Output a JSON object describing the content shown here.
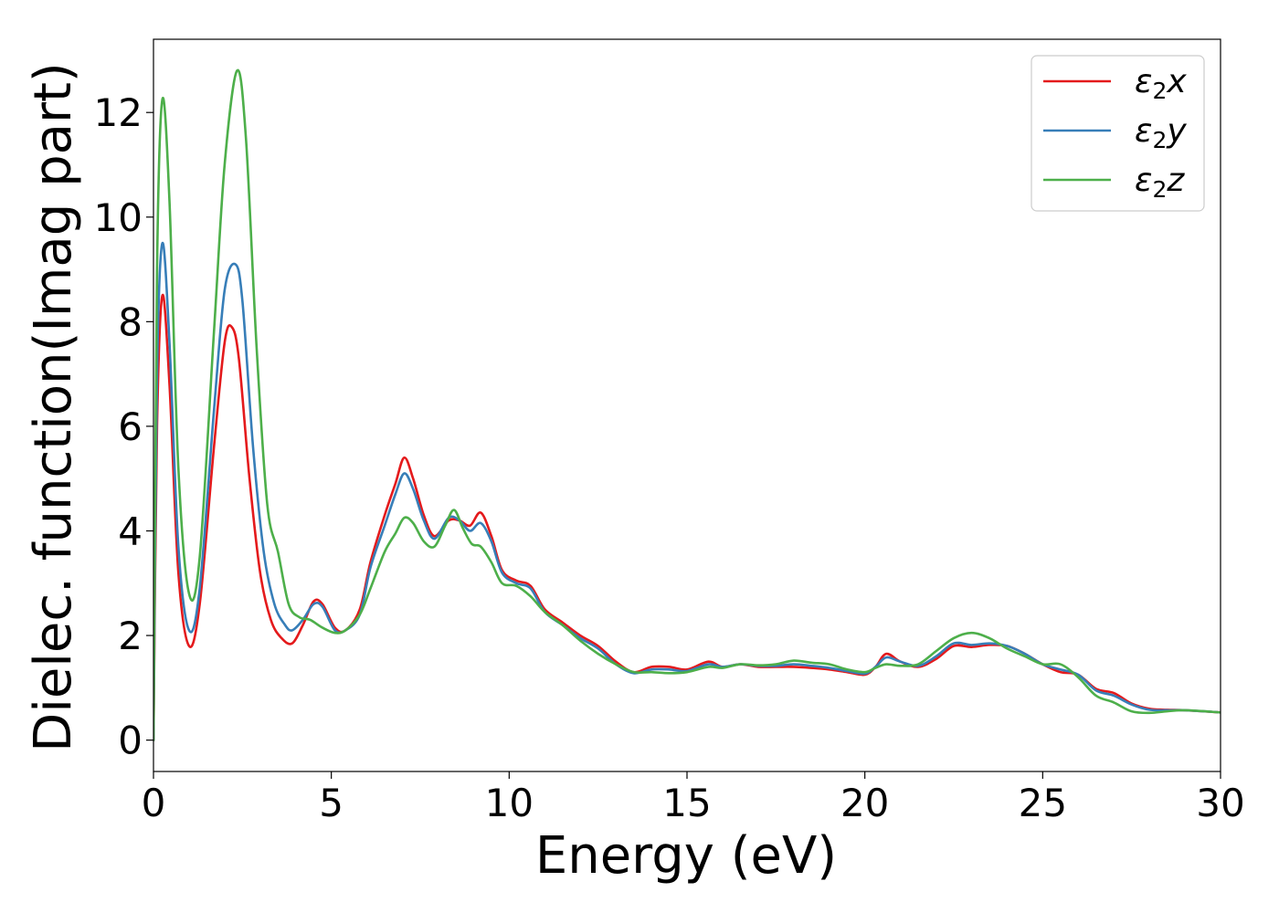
{
  "chart_data": {
    "type": "line",
    "xlabel": "Energy (eV)",
    "ylabel": "Dielec. function(Imag part)",
    "xlim": [
      0,
      30
    ],
    "ylim": [
      -0.6,
      13.4
    ],
    "xticks": [
      0,
      5,
      10,
      15,
      20,
      25,
      30
    ],
    "yticks": [
      0,
      2,
      4,
      6,
      8,
      10,
      12
    ],
    "grid": false,
    "legend_position": "top-right",
    "series": [
      {
        "name": "ε2x",
        "legend": {
          "base": "ε",
          "sub": "2",
          "suffix": "x"
        },
        "color": "#e41a1c",
        "points": [
          [
            0,
            0
          ],
          [
            0.1,
            6.0
          ],
          [
            0.25,
            8.5
          ],
          [
            0.45,
            6.8
          ],
          [
            0.7,
            3.2
          ],
          [
            1.0,
            1.8
          ],
          [
            1.3,
            2.6
          ],
          [
            1.7,
            5.6
          ],
          [
            2.0,
            7.6
          ],
          [
            2.2,
            7.9
          ],
          [
            2.4,
            7.3
          ],
          [
            2.7,
            5.0
          ],
          [
            3.0,
            3.2
          ],
          [
            3.3,
            2.3
          ],
          [
            3.6,
            1.95
          ],
          [
            3.9,
            1.85
          ],
          [
            4.2,
            2.2
          ],
          [
            4.5,
            2.65
          ],
          [
            4.75,
            2.6
          ],
          [
            5.1,
            2.15
          ],
          [
            5.4,
            2.1
          ],
          [
            5.8,
            2.5
          ],
          [
            6.1,
            3.4
          ],
          [
            6.5,
            4.3
          ],
          [
            6.8,
            4.9
          ],
          [
            7.05,
            5.4
          ],
          [
            7.3,
            5.0
          ],
          [
            7.6,
            4.3
          ],
          [
            7.9,
            3.9
          ],
          [
            8.3,
            4.2
          ],
          [
            8.6,
            4.2
          ],
          [
            8.9,
            4.1
          ],
          [
            9.2,
            4.35
          ],
          [
            9.5,
            3.9
          ],
          [
            9.8,
            3.25
          ],
          [
            10.2,
            3.05
          ],
          [
            10.6,
            2.95
          ],
          [
            11.0,
            2.5
          ],
          [
            11.5,
            2.25
          ],
          [
            12.0,
            2.0
          ],
          [
            12.5,
            1.8
          ],
          [
            13.0,
            1.5
          ],
          [
            13.5,
            1.3
          ],
          [
            14.0,
            1.4
          ],
          [
            14.5,
            1.4
          ],
          [
            15.0,
            1.35
          ],
          [
            15.6,
            1.5
          ],
          [
            16.0,
            1.4
          ],
          [
            16.5,
            1.45
          ],
          [
            17.0,
            1.4
          ],
          [
            17.5,
            1.4
          ],
          [
            18.0,
            1.4
          ],
          [
            18.5,
            1.38
          ],
          [
            19.0,
            1.35
          ],
          [
            19.5,
            1.3
          ],
          [
            20.0,
            1.25
          ],
          [
            20.3,
            1.4
          ],
          [
            20.6,
            1.65
          ],
          [
            21.0,
            1.5
          ],
          [
            21.5,
            1.4
          ],
          [
            22.0,
            1.55
          ],
          [
            22.5,
            1.8
          ],
          [
            23.0,
            1.78
          ],
          [
            23.5,
            1.82
          ],
          [
            24.0,
            1.8
          ],
          [
            24.5,
            1.65
          ],
          [
            25.0,
            1.45
          ],
          [
            25.5,
            1.3
          ],
          [
            26.0,
            1.25
          ],
          [
            26.5,
            0.98
          ],
          [
            27.0,
            0.9
          ],
          [
            27.5,
            0.7
          ],
          [
            28.0,
            0.6
          ],
          [
            28.5,
            0.58
          ],
          [
            29.0,
            0.57
          ],
          [
            30,
            0.53
          ]
        ]
      },
      {
        "name": "ε2y",
        "legend": {
          "base": "ε",
          "sub": "2",
          "suffix": "y"
        },
        "color": "#377eb8",
        "points": [
          [
            0,
            0
          ],
          [
            0.1,
            7.0
          ],
          [
            0.25,
            9.5
          ],
          [
            0.45,
            7.6
          ],
          [
            0.7,
            3.7
          ],
          [
            1.0,
            2.1
          ],
          [
            1.3,
            2.9
          ],
          [
            1.7,
            6.3
          ],
          [
            2.0,
            8.6
          ],
          [
            2.3,
            9.1
          ],
          [
            2.5,
            8.4
          ],
          [
            2.8,
            5.6
          ],
          [
            3.1,
            3.6
          ],
          [
            3.4,
            2.6
          ],
          [
            3.7,
            2.2
          ],
          [
            3.9,
            2.1
          ],
          [
            4.2,
            2.3
          ],
          [
            4.5,
            2.6
          ],
          [
            4.75,
            2.55
          ],
          [
            5.1,
            2.1
          ],
          [
            5.4,
            2.1
          ],
          [
            5.8,
            2.4
          ],
          [
            6.1,
            3.3
          ],
          [
            6.5,
            4.1
          ],
          [
            6.8,
            4.7
          ],
          [
            7.05,
            5.1
          ],
          [
            7.3,
            4.8
          ],
          [
            7.6,
            4.2
          ],
          [
            7.9,
            3.85
          ],
          [
            8.3,
            4.25
          ],
          [
            8.6,
            4.2
          ],
          [
            8.9,
            4.0
          ],
          [
            9.2,
            4.15
          ],
          [
            9.5,
            3.8
          ],
          [
            9.8,
            3.2
          ],
          [
            10.2,
            3.0
          ],
          [
            10.6,
            2.9
          ],
          [
            11.0,
            2.45
          ],
          [
            11.5,
            2.2
          ],
          [
            12.0,
            1.95
          ],
          [
            12.5,
            1.75
          ],
          [
            13.0,
            1.45
          ],
          [
            13.5,
            1.28
          ],
          [
            14.0,
            1.35
          ],
          [
            14.5,
            1.35
          ],
          [
            15.0,
            1.32
          ],
          [
            15.6,
            1.45
          ],
          [
            16.0,
            1.4
          ],
          [
            16.5,
            1.45
          ],
          [
            17.0,
            1.42
          ],
          [
            17.5,
            1.42
          ],
          [
            18.0,
            1.45
          ],
          [
            18.5,
            1.42
          ],
          [
            19.0,
            1.38
          ],
          [
            19.5,
            1.32
          ],
          [
            20.0,
            1.27
          ],
          [
            20.3,
            1.4
          ],
          [
            20.6,
            1.58
          ],
          [
            21.0,
            1.5
          ],
          [
            21.5,
            1.42
          ],
          [
            22.0,
            1.6
          ],
          [
            22.5,
            1.85
          ],
          [
            23.0,
            1.82
          ],
          [
            23.5,
            1.85
          ],
          [
            24.0,
            1.8
          ],
          [
            24.5,
            1.65
          ],
          [
            25.0,
            1.45
          ],
          [
            25.5,
            1.35
          ],
          [
            26.0,
            1.25
          ],
          [
            26.5,
            0.95
          ],
          [
            27.0,
            0.85
          ],
          [
            27.5,
            0.68
          ],
          [
            28.0,
            0.58
          ],
          [
            28.5,
            0.57
          ],
          [
            29.0,
            0.57
          ],
          [
            30,
            0.53
          ]
        ]
      },
      {
        "name": "ε2z",
        "legend": {
          "base": "ε",
          "sub": "2",
          "suffix": "z"
        },
        "color": "#4daf4a",
        "points": [
          [
            0,
            0
          ],
          [
            0.1,
            9.0
          ],
          [
            0.25,
            12.25
          ],
          [
            0.45,
            10.3
          ],
          [
            0.7,
            5.2
          ],
          [
            1.0,
            2.8
          ],
          [
            1.3,
            3.5
          ],
          [
            1.7,
            7.8
          ],
          [
            2.0,
            11.0
          ],
          [
            2.35,
            12.8
          ],
          [
            2.6,
            11.5
          ],
          [
            2.9,
            7.5
          ],
          [
            3.2,
            4.5
          ],
          [
            3.5,
            3.6
          ],
          [
            3.8,
            2.6
          ],
          [
            4.1,
            2.35
          ],
          [
            4.4,
            2.3
          ],
          [
            4.75,
            2.15
          ],
          [
            5.1,
            2.05
          ],
          [
            5.4,
            2.1
          ],
          [
            5.8,
            2.4
          ],
          [
            6.1,
            2.9
          ],
          [
            6.5,
            3.6
          ],
          [
            6.8,
            3.95
          ],
          [
            7.05,
            4.25
          ],
          [
            7.3,
            4.15
          ],
          [
            7.6,
            3.8
          ],
          [
            7.9,
            3.7
          ],
          [
            8.2,
            4.1
          ],
          [
            8.45,
            4.4
          ],
          [
            8.7,
            4.05
          ],
          [
            8.95,
            3.75
          ],
          [
            9.2,
            3.7
          ],
          [
            9.5,
            3.4
          ],
          [
            9.8,
            3.0
          ],
          [
            10.2,
            2.95
          ],
          [
            10.6,
            2.75
          ],
          [
            11.0,
            2.45
          ],
          [
            11.5,
            2.2
          ],
          [
            12.0,
            1.9
          ],
          [
            12.5,
            1.65
          ],
          [
            13.0,
            1.45
          ],
          [
            13.5,
            1.3
          ],
          [
            14.0,
            1.3
          ],
          [
            14.5,
            1.28
          ],
          [
            15.0,
            1.3
          ],
          [
            15.6,
            1.4
          ],
          [
            16.0,
            1.38
          ],
          [
            16.5,
            1.45
          ],
          [
            17.0,
            1.43
          ],
          [
            17.5,
            1.45
          ],
          [
            18.0,
            1.52
          ],
          [
            18.5,
            1.48
          ],
          [
            19.0,
            1.45
          ],
          [
            19.5,
            1.35
          ],
          [
            20.0,
            1.3
          ],
          [
            20.3,
            1.38
          ],
          [
            20.6,
            1.45
          ],
          [
            21.0,
            1.42
          ],
          [
            21.5,
            1.45
          ],
          [
            22.0,
            1.7
          ],
          [
            22.5,
            1.95
          ],
          [
            23.0,
            2.05
          ],
          [
            23.5,
            1.95
          ],
          [
            24.0,
            1.75
          ],
          [
            24.5,
            1.6
          ],
          [
            25.0,
            1.45
          ],
          [
            25.5,
            1.45
          ],
          [
            26.0,
            1.2
          ],
          [
            26.5,
            0.85
          ],
          [
            27.0,
            0.72
          ],
          [
            27.5,
            0.55
          ],
          [
            28.0,
            0.52
          ],
          [
            28.5,
            0.55
          ],
          [
            29.0,
            0.57
          ],
          [
            30,
            0.53
          ]
        ]
      }
    ]
  }
}
